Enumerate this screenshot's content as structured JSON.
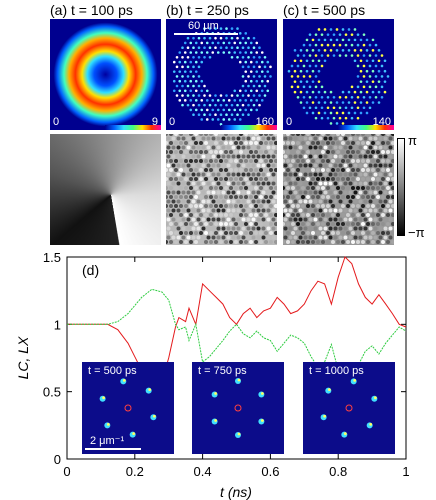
{
  "panels": [
    {
      "label": "(a) t = 100 ps",
      "cbar_min": "0",
      "cbar_max": "9"
    },
    {
      "label": "(b) t = 250 ps",
      "cbar_min": "0",
      "cbar_max": "160"
    },
    {
      "label": "(c) t = 500 ps",
      "cbar_min": "0",
      "cbar_max": "140"
    }
  ],
  "scale_bar_label": "60 μm",
  "phase_cbar": {
    "top": "π",
    "bottom": "−π"
  },
  "insets": [
    {
      "label": "t = 500 ps"
    },
    {
      "label": "t = 750 ps"
    },
    {
      "label": "t = 1000 ps"
    }
  ],
  "inset_scale_label": "2 μm⁻¹",
  "colors": {
    "inset_bg": "#0c0c8a",
    "red_series": "#e41a1c",
    "green_series": "#2ecc40"
  },
  "chart_data": {
    "type": "line",
    "panel_label": "(d)",
    "xlabel": "t (ns)",
    "ylabel": "LC, LX",
    "xlim": [
      0,
      1
    ],
    "ylim": [
      0,
      1.5
    ],
    "xticks": [
      "0",
      "0.2",
      "0.4",
      "0.6",
      "0.8",
      "1"
    ],
    "yticks": [
      "0",
      "0.5",
      "1",
      "1.5"
    ],
    "series": [
      {
        "color": "red",
        "x": [
          0,
          0.05,
          0.1,
          0.12,
          0.15,
          0.18,
          0.2,
          0.22,
          0.25,
          0.28,
          0.3,
          0.32,
          0.33,
          0.35,
          0.36,
          0.38,
          0.4,
          0.42,
          0.44,
          0.46,
          0.48,
          0.5,
          0.52,
          0.54,
          0.56,
          0.58,
          0.6,
          0.62,
          0.64,
          0.66,
          0.68,
          0.7,
          0.72,
          0.74,
          0.76,
          0.78,
          0.8,
          0.82,
          0.84,
          0.86,
          0.88,
          0.9,
          0.92,
          0.94,
          0.96,
          0.98,
          1.0
        ],
        "y": [
          1.0,
          1.0,
          1.0,
          1.0,
          0.96,
          0.86,
          0.76,
          0.66,
          0.56,
          0.58,
          0.75,
          0.98,
          1.05,
          1.02,
          1.12,
          1.0,
          1.3,
          1.25,
          1.2,
          1.15,
          1.05,
          1.0,
          1.08,
          1.12,
          1.05,
          1.1,
          1.12,
          1.2,
          1.15,
          1.08,
          1.1,
          1.15,
          1.25,
          1.32,
          1.3,
          1.15,
          1.35,
          1.5,
          1.45,
          1.3,
          1.2,
          1.15,
          1.22,
          1.15,
          1.08,
          1.0,
          0.98
        ]
      },
      {
        "color": "green",
        "x": [
          0,
          0.05,
          0.1,
          0.12,
          0.15,
          0.18,
          0.2,
          0.22,
          0.25,
          0.28,
          0.3,
          0.32,
          0.33,
          0.35,
          0.36,
          0.38,
          0.4,
          0.42,
          0.44,
          0.46,
          0.48,
          0.5,
          0.52,
          0.54,
          0.56,
          0.58,
          0.6,
          0.62,
          0.64,
          0.66,
          0.68,
          0.7,
          0.72,
          0.74,
          0.76,
          0.78,
          0.8,
          0.82,
          0.84,
          0.86,
          0.88,
          0.9,
          0.92,
          0.94,
          0.96,
          0.98,
          1.0
        ],
        "y": [
          1.0,
          1.0,
          1.0,
          1.0,
          1.02,
          1.08,
          1.14,
          1.2,
          1.26,
          1.24,
          1.18,
          1.0,
          0.96,
          0.98,
          0.88,
          1.0,
          0.72,
          0.76,
          0.82,
          0.88,
          0.95,
          1.0,
          0.93,
          0.9,
          0.95,
          0.9,
          0.88,
          0.8,
          0.86,
          0.92,
          0.9,
          0.86,
          0.76,
          0.68,
          0.72,
          0.85,
          0.66,
          0.55,
          0.6,
          0.7,
          0.8,
          0.84,
          0.78,
          0.86,
          0.92,
          0.98,
          0.95
        ]
      }
    ]
  }
}
